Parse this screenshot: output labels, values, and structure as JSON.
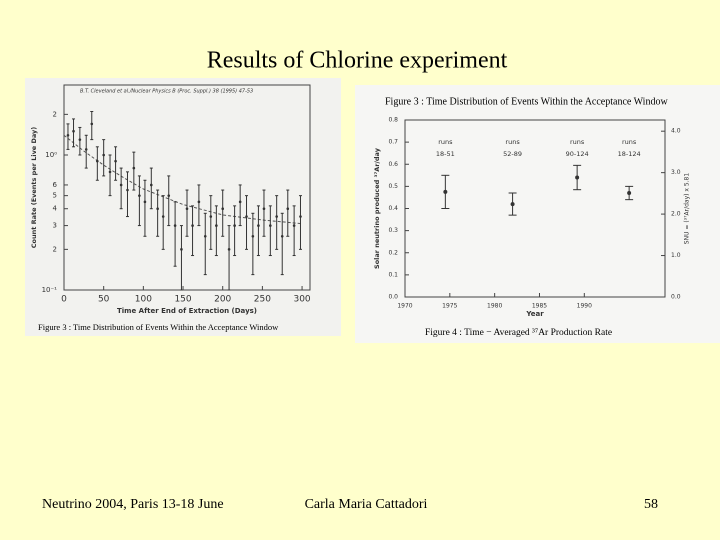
{
  "title": "Results of Chlorine experiment",
  "footer": {
    "left": "Neutrino 2004, Paris 13-18 June",
    "center": "Carla Maria Cattadori",
    "page": "58"
  },
  "chart_data": [
    {
      "type": "scatter",
      "citation": "B.T. Cleveland et al./Nuclear Physics B (Proc. Suppl.) 38 (1995) 47-53",
      "caption": "Figure 3 : Time Distribution of Events Within the Acceptance Window",
      "xlabel": "Time After End of Extraction (Days)",
      "ylabel": "Count Rate (Events per Live Day)",
      "log_y": true,
      "xlim": [
        0,
        310
      ],
      "xticks": [
        0,
        50,
        100,
        150,
        200,
        250,
        300
      ],
      "ylim": [
        0.1,
        3.3
      ],
      "yticks": [
        2,
        {
          "value": 1,
          "label": "10⁰"
        },
        {
          "value": 0.6,
          "label": "6"
        },
        {
          "value": 0.5,
          "label": "5"
        },
        {
          "value": 0.4,
          "label": "4"
        },
        {
          "value": 0.3,
          "label": "3"
        },
        {
          "value": 0.2,
          "label": "2"
        },
        {
          "value": 0.1,
          "label": "10⁻¹"
        }
      ],
      "color": "#333333",
      "x": [
        5,
        12,
        20,
        28,
        35,
        42,
        50,
        58,
        65,
        72,
        80,
        88,
        95,
        102,
        110,
        118,
        125,
        132,
        140,
        148,
        155,
        162,
        170,
        178,
        185,
        192,
        200,
        208,
        215,
        222,
        230,
        238,
        245,
        252,
        260,
        268,
        275,
        282,
        290,
        298
      ],
      "values": [
        1.4,
        1.5,
        1.3,
        1.1,
        1.7,
        0.9,
        1.0,
        0.75,
        0.9,
        0.6,
        0.55,
        0.8,
        0.5,
        0.45,
        0.6,
        0.4,
        0.35,
        0.5,
        0.3,
        0.2,
        0.4,
        0.3,
        0.45,
        0.25,
        0.35,
        0.3,
        0.4,
        0.2,
        0.3,
        0.45,
        0.35,
        0.25,
        0.3,
        0.4,
        0.3,
        0.35,
        0.25,
        0.4,
        0.3,
        0.35
      ],
      "errors": [
        0.3,
        0.35,
        0.3,
        0.3,
        0.4,
        0.25,
        0.3,
        0.25,
        0.25,
        0.2,
        0.2,
        0.25,
        0.2,
        0.2,
        0.2,
        0.15,
        0.15,
        0.2,
        0.15,
        0.1,
        0.15,
        0.12,
        0.15,
        0.12,
        0.15,
        0.12,
        0.15,
        0.1,
        0.12,
        0.15,
        0.15,
        0.12,
        0.12,
        0.15,
        0.12,
        0.15,
        0.12,
        0.15,
        0.12,
        0.15
      ],
      "fit": {
        "x": [
          0,
          25,
          50,
          75,
          100,
          150,
          200,
          250,
          300
        ],
        "values": [
          1.4,
          1.07,
          0.84,
          0.68,
          0.56,
          0.43,
          0.36,
          0.33,
          0.31
        ]
      }
    },
    {
      "type": "scatter",
      "title": "Figure 3 : Time Distribution of Events Within the Acceptance Window",
      "caption": "Figure 4 : Time − Averaged ³⁷Ar Production Rate",
      "xlabel": "Year",
      "ylabel": "Solar neutrino produced ³⁷Ar/day",
      "y2label": "SNU = (³⁷Ar/day) x 5.81",
      "xlim": [
        1970,
        1999
      ],
      "xticks": [
        1970,
        1975,
        1980,
        1985,
        1990
      ],
      "ylim": [
        0,
        0.8
      ],
      "yticks": [
        {
          "value": 0,
          "label": "0.0"
        },
        0.1,
        0.2,
        0.3,
        0.4,
        0.5,
        0.6,
        0.7,
        0.8
      ],
      "y2lim": [
        0,
        4.27
      ],
      "y2ticks": [
        {
          "value": 0,
          "label": "0.0"
        },
        {
          "value": 1,
          "label": "1.0"
        },
        {
          "value": 2,
          "label": "2.0"
        },
        {
          "value": 3,
          "label": "3.0"
        },
        {
          "value": 4,
          "label": "4.0"
        }
      ],
      "color": "#333333",
      "x": [
        1974.5,
        1982,
        1989.2,
        1995
      ],
      "values": [
        0.475,
        0.42,
        0.54,
        0.47
      ],
      "errors": [
        0.075,
        0.05,
        0.055,
        0.03
      ],
      "point_labels": [
        [
          "runs",
          "18-51"
        ],
        [
          "runs",
          "52-89"
        ],
        [
          "runs",
          "90-124"
        ],
        [
          "runs",
          "18-124"
        ]
      ]
    }
  ]
}
